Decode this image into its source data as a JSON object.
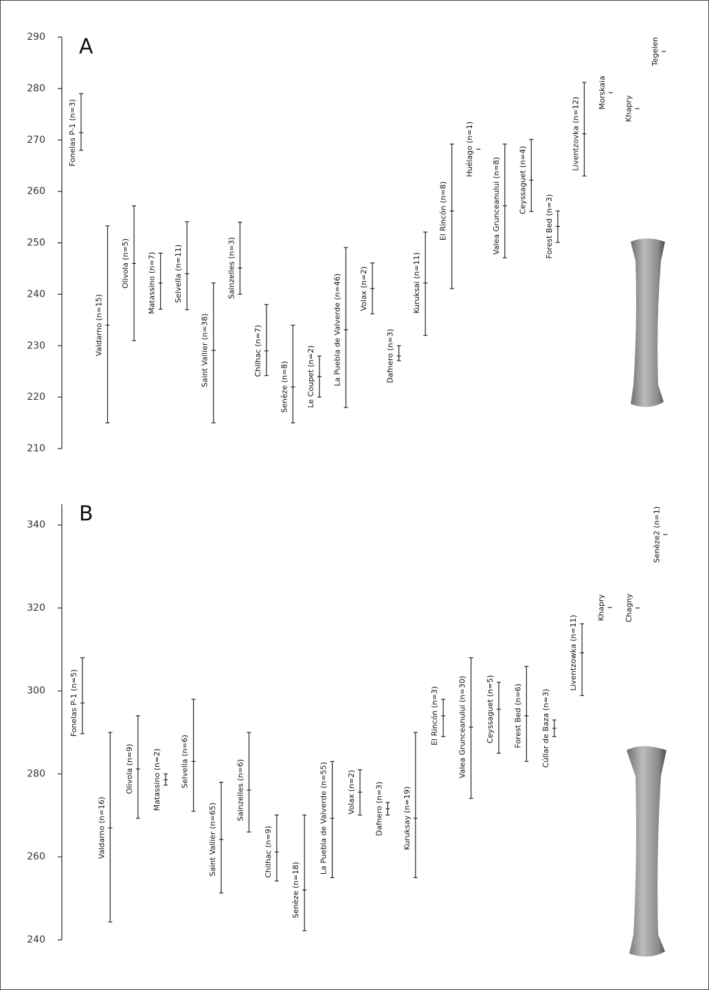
{
  "chart_data": [
    {
      "type": "range",
      "label": "A",
      "categories": [
        "Fonelas P-1 (n=3)",
        "Valdarno (n=15)",
        "Olivola (n=5)",
        "Matassino (n=7)",
        "Selvella (n=11)",
        "Saint Vallier (n=38)",
        "Sainzelles (n=3)",
        "Chilhac (n=7)",
        "Senèze (n=8)",
        "Le Coupet (n=2)",
        "La Puebla de Valverde (n=46)",
        "Volax (n=2)",
        "Dafnero (n=3)",
        "Kuruksai (n=11)",
        "El Rincón (n=8)",
        "Huélago (n=1)",
        "Valea Grunceanului (n=8)",
        "Ceyssaguet (n=4)",
        "Forest Bed (n=3)",
        "Liventzovka (n=12)",
        "Morskaia",
        "Khapry",
        "Tegelen"
      ],
      "max": [
        279,
        253.3,
        257.2,
        248,
        254.1,
        242.2,
        254,
        238,
        234,
        228,
        249.1,
        246.1,
        230,
        252.1,
        269.2,
        null,
        269.2,
        270.1,
        256.2,
        281.2,
        null,
        null,
        null
      ],
      "mean": [
        271.4,
        234,
        246,
        242.2,
        244,
        229.1,
        245.1,
        229,
        222,
        224,
        233.1,
        241.1,
        228,
        242.2,
        256.2,
        268.2,
        257.2,
        262.2,
        253.2,
        271.2,
        279.2,
        276.1,
        287.2
      ],
      "min": [
        268,
        215,
        231,
        237.1,
        237,
        215,
        240,
        224.2,
        215,
        220,
        218,
        236.2,
        227.1,
        232,
        241.1,
        null,
        247.1,
        256.1,
        250.1,
        263,
        null,
        null,
        null
      ],
      "ylim": [
        210,
        290
      ],
      "yticks": [
        210,
        220,
        230,
        240,
        250,
        260,
        270,
        280,
        290
      ]
    },
    {
      "type": "range",
      "label": "B",
      "categories": [
        "Fonelas P-1 (n=5)",
        "Valdarno (n=16)",
        "Olivola (n=9)",
        "Matassino (n=2)",
        "Selvella (n=6)",
        "Saint Vallier (n=65)",
        "Sainzelles (n=6)",
        "Chilhac (n=9)",
        "Senèze (n=18)",
        "La Puebla de Valverde (n=55)",
        "Volax (n=2)",
        "Dafnero (n=3)",
        "Kuruksay (n=19)",
        "El Rincón (n=3)",
        "Valea Grunceanului (n=30)",
        "Ceyssaguet (n=5)",
        "Forest Bed (n=6)",
        "Cúllar de Baza (n=3)",
        "Liventzowka (n=11)",
        "Khapry",
        "Chagny",
        "Senèze2 (n=1)"
      ],
      "max": [
        308,
        290,
        294,
        280,
        298,
        278,
        290,
        270.1,
        270.1,
        283,
        281,
        273.1,
        290,
        298,
        308,
        302.1,
        305.9,
        293,
        316.2,
        null,
        null,
        null
      ],
      "mean": [
        297.1,
        267,
        281.2,
        278.6,
        283,
        264.2,
        276.1,
        261.2,
        252,
        269.3,
        275.6,
        271.6,
        269.3,
        294,
        291.3,
        295.6,
        294,
        291,
        309.2,
        320.1,
        320,
        337.7
      ],
      "min": [
        289.7,
        244.3,
        269.3,
        277.3,
        271,
        251.3,
        266,
        254.2,
        242.2,
        255,
        270.1,
        270.1,
        255,
        289,
        274.1,
        285,
        283,
        289,
        298.9,
        null,
        null,
        null
      ],
      "ylim": [
        240,
        345
      ],
      "yticks": [
        240,
        260,
        280,
        300,
        320,
        340
      ]
    }
  ]
}
